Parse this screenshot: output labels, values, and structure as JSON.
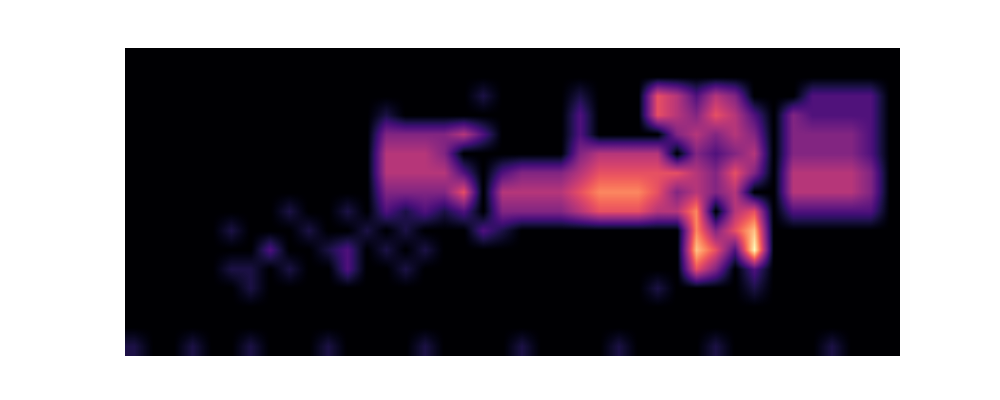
{
  "chart_data": {
    "type": "heatmap",
    "color": "magma",
    "tick_labels": false,
    "cells": [
      [
        0,
        0,
        0,
        0,
        0,
        0,
        0,
        0,
        0,
        0,
        0,
        0,
        0,
        0,
        0,
        0,
        0,
        0,
        0,
        0,
        0,
        0,
        0,
        0,
        0,
        0,
        0,
        0,
        0,
        0,
        0,
        0,
        0,
        0,
        0,
        0,
        0,
        0,
        0,
        0
      ],
      [
        0,
        0,
        0,
        0,
        0,
        0,
        0,
        0,
        0,
        0,
        0,
        0,
        0,
        0,
        0,
        0,
        0,
        0,
        0,
        0,
        0,
        0,
        0,
        0,
        0,
        0,
        0,
        0,
        0,
        0,
        0,
        0,
        0,
        0,
        0,
        0,
        0,
        0,
        0,
        0
      ],
      [
        0,
        0,
        0,
        0,
        0,
        0,
        0,
        0,
        0,
        0,
        0,
        0,
        0,
        0,
        0,
        0,
        0,
        0,
        1,
        0,
        0,
        0,
        0,
        1,
        0,
        0,
        0,
        5,
        4,
        2,
        4,
        3,
        0,
        0,
        0,
        2,
        2,
        2,
        2,
        0
      ],
      [
        0,
        0,
        0,
        0,
        0,
        0,
        0,
        0,
        0,
        0,
        0,
        0,
        0,
        1,
        0,
        0,
        0,
        0,
        0,
        0,
        0,
        0,
        0,
        2,
        0,
        0,
        0,
        5,
        4,
        3,
        5,
        4,
        2,
        0,
        3,
        2,
        2,
        2,
        2,
        0
      ],
      [
        0,
        0,
        0,
        0,
        0,
        0,
        0,
        0,
        0,
        0,
        0,
        0,
        0,
        3,
        3,
        3,
        3,
        4,
        2,
        0,
        0,
        0,
        0,
        2,
        0,
        0,
        0,
        0,
        3,
        4,
        3,
        4,
        3,
        0,
        3,
        3,
        3,
        3,
        2,
        0
      ],
      [
        0,
        0,
        0,
        0,
        0,
        0,
        0,
        0,
        0,
        0,
        0,
        0,
        0,
        4,
        4,
        4,
        3,
        0,
        0,
        0,
        0,
        0,
        0,
        3,
        4,
        4,
        4,
        4,
        0,
        3,
        2,
        3,
        4,
        0,
        3,
        3,
        3,
        3,
        2,
        0
      ],
      [
        0,
        0,
        0,
        0,
        0,
        0,
        0,
        0,
        0,
        0,
        0,
        0,
        0,
        4,
        4,
        4,
        4,
        2,
        0,
        2,
        3,
        3,
        3,
        4,
        5,
        5,
        5,
        5,
        5,
        4,
        3,
        5,
        3,
        0,
        4,
        4,
        4,
        4,
        3,
        0
      ],
      [
        0,
        0,
        0,
        0,
        0,
        0,
        0,
        0,
        0,
        0,
        0,
        0,
        0,
        3,
        3,
        3,
        3,
        5,
        0,
        4,
        4,
        4,
        4,
        5,
        6,
        6,
        6,
        5,
        3,
        4,
        3,
        4,
        0,
        0,
        4,
        4,
        4,
        4,
        3,
        0
      ],
      [
        0,
        0,
        0,
        0,
        0,
        0,
        0,
        0,
        1,
        0,
        0,
        1,
        0,
        2,
        1,
        2,
        1,
        2,
        0,
        3,
        3,
        3,
        3,
        4,
        5,
        5,
        5,
        4,
        4,
        6,
        0,
        4,
        5,
        0,
        2,
        2,
        2,
        2,
        2,
        0
      ],
      [
        0,
        0,
        0,
        0,
        0,
        1,
        0,
        0,
        0,
        1,
        0,
        0,
        1,
        0,
        1,
        0,
        0,
        0,
        2,
        1,
        0,
        0,
        0,
        0,
        0,
        0,
        0,
        0,
        0,
        6,
        3,
        5,
        7,
        0,
        0,
        0,
        0,
        0,
        0,
        0
      ],
      [
        0,
        0,
        0,
        0,
        0,
        0,
        0,
        2,
        0,
        0,
        1,
        2,
        0,
        1,
        0,
        1,
        0,
        0,
        0,
        0,
        0,
        0,
        0,
        0,
        0,
        0,
        0,
        0,
        0,
        7,
        5,
        2,
        8,
        0,
        0,
        0,
        0,
        0,
        0,
        0
      ],
      [
        0,
        0,
        0,
        0,
        0,
        1,
        1,
        0,
        1,
        0,
        0,
        2,
        0,
        0,
        1,
        0,
        0,
        0,
        0,
        0,
        0,
        0,
        0,
        0,
        0,
        0,
        0,
        0,
        0,
        5,
        3,
        0,
        2,
        0,
        0,
        0,
        0,
        0,
        0,
        0
      ],
      [
        0,
        0,
        0,
        0,
        0,
        0,
        1,
        0,
        0,
        0,
        0,
        0,
        0,
        0,
        0,
        0,
        0,
        0,
        0,
        0,
        0,
        0,
        0,
        0,
        0,
        0,
        0,
        1,
        0,
        0,
        0,
        0,
        1,
        0,
        0,
        0,
        0,
        0,
        0,
        0
      ],
      [
        0,
        0,
        0,
        0,
        0,
        0,
        0,
        0,
        0,
        0,
        0,
        0,
        0,
        0,
        0,
        0,
        0,
        0,
        0,
        0,
        0,
        0,
        0,
        0,
        0,
        0,
        0,
        0,
        0,
        0,
        0,
        0,
        0,
        0,
        0,
        0,
        0,
        0,
        0,
        0
      ],
      [
        0,
        0,
        0,
        0,
        0,
        0,
        0,
        0,
        0,
        0,
        0,
        0,
        0,
        0,
        0,
        0,
        0,
        0,
        0,
        0,
        0,
        0,
        0,
        0,
        0,
        0,
        0,
        0,
        0,
        0,
        0,
        0,
        0,
        0,
        0,
        0,
        0,
        0,
        0,
        0
      ],
      [
        1,
        0,
        0,
        1,
        0,
        0,
        1,
        0,
        0,
        0,
        1,
        0,
        0,
        0,
        0,
        1,
        0,
        0,
        0,
        0,
        1,
        0,
        0,
        0,
        0,
        1,
        0,
        0,
        0,
        0,
        1,
        0,
        0,
        0,
        0,
        0,
        1,
        0,
        0,
        0
      ]
    ]
  }
}
